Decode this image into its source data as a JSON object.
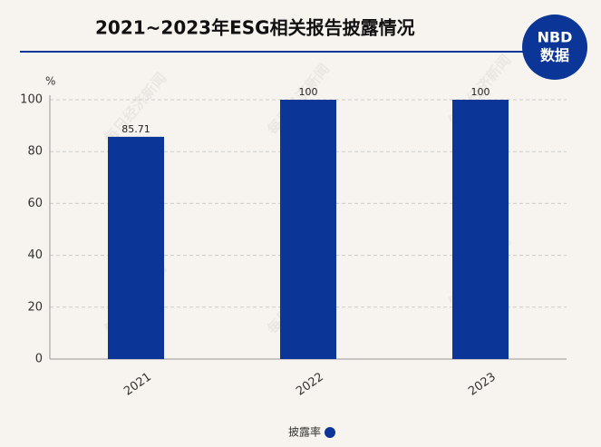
{
  "chart_data": {
    "type": "bar",
    "title": "2021~2023年ESG相关报告披露情况",
    "logo_text": "NBD",
    "logo_subtext": "数据",
    "watermark": "每日经济新闻",
    "y_unit": "%",
    "categories": [
      "2021",
      "2022",
      "2023"
    ],
    "series": [
      {
        "name": "披露率",
        "color": "#0b3596",
        "values": [
          85.71,
          100,
          100
        ]
      }
    ],
    "ylim": [
      0,
      100
    ],
    "yticks": [
      0,
      20,
      40,
      60,
      80,
      100
    ],
    "grid": true
  }
}
